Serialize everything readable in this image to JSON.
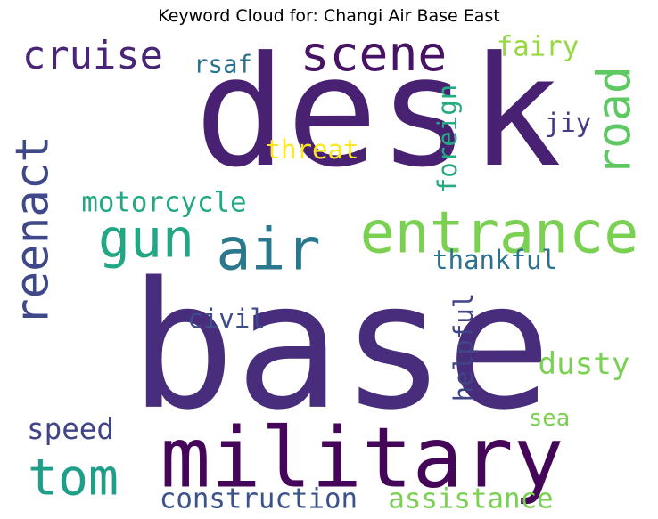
{
  "title": "Keyword Cloud for: Changi Air Base East",
  "words": [
    {
      "id": "desk",
      "text": "desk",
      "color": "#482173"
    },
    {
      "id": "base",
      "text": "base",
      "color": "#472d7b"
    },
    {
      "id": "military",
      "text": "military",
      "color": "#450559"
    },
    {
      "id": "scene",
      "text": "scene",
      "color": "#471365"
    },
    {
      "id": "road",
      "text": "road",
      "color": "#5ec962"
    },
    {
      "id": "reenact",
      "text": "reenact",
      "color": "#3f4889"
    },
    {
      "id": "entrance",
      "text": "entrance",
      "color": "#7ad151"
    },
    {
      "id": "air",
      "text": "air",
      "color": "#2a788e"
    },
    {
      "id": "gun",
      "text": "gun",
      "color": "#22a785"
    },
    {
      "id": "cruise",
      "text": "cruise",
      "color": "#482576"
    },
    {
      "id": "tom",
      "text": "tom",
      "color": "#1f9e89"
    },
    {
      "id": "fairy",
      "text": "fairy",
      "color": "#95d840"
    },
    {
      "id": "rsaf",
      "text": "rsaf",
      "color": "#2c728e"
    },
    {
      "id": "jiy",
      "text": "jiy",
      "color": "#443983"
    },
    {
      "id": "threat",
      "text": "threat",
      "color": "#fde725"
    },
    {
      "id": "foreign",
      "text": "foreign",
      "color": "#25ab82"
    },
    {
      "id": "motorcycle",
      "text": "motorcycle",
      "color": "#22a884"
    },
    {
      "id": "thankful",
      "text": "thankful",
      "color": "#2c728e"
    },
    {
      "id": "helpful",
      "text": "helpful",
      "color": "#414487"
    },
    {
      "id": "civil",
      "text": "civil",
      "color": "#3e4c8a"
    },
    {
      "id": "dusty",
      "text": "dusty",
      "color": "#7ad151"
    },
    {
      "id": "speed",
      "text": "speed",
      "color": "#414487"
    },
    {
      "id": "sea",
      "text": "sea",
      "color": "#7ad151"
    },
    {
      "id": "construction",
      "text": "construction",
      "color": "#3b528b"
    },
    {
      "id": "assistance",
      "text": "assistance",
      "color": "#7ad151"
    }
  ]
}
